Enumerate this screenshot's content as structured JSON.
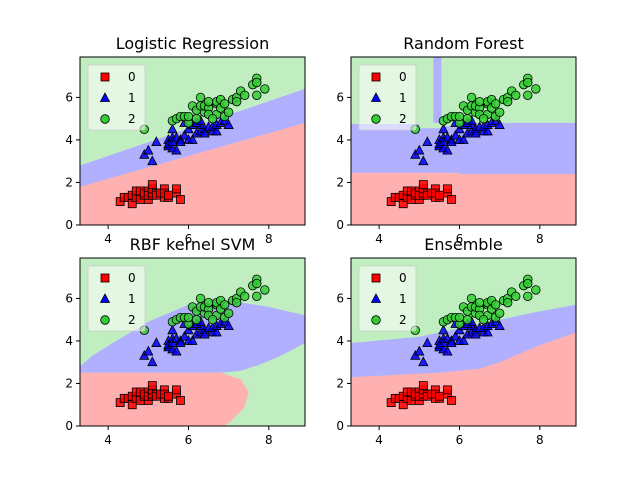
{
  "chart_data": [
    {
      "type": "scatter",
      "title": "Logistic Regression",
      "xlabel": "",
      "ylabel": "",
      "xlim": [
        3.3,
        8.9
      ],
      "ylim": [
        0,
        7.9
      ],
      "xticks": [
        4,
        6,
        8
      ],
      "yticks": [
        0,
        2,
        4,
        6
      ],
      "grid": false,
      "legend": "top-left",
      "regions": {
        "boundary_01": [
          [
            3.3,
            1.8
          ],
          [
            8.9,
            4.8
          ]
        ],
        "boundary_12": [
          [
            3.3,
            2.8
          ],
          [
            8.9,
            6.4
          ]
        ]
      }
    },
    {
      "type": "scatter",
      "title": "Random Forest",
      "xlabel": "",
      "ylabel": "",
      "xlim": [
        3.3,
        8.9
      ],
      "ylim": [
        0,
        7.9
      ],
      "xticks": [
        4,
        6,
        8
      ],
      "yticks": [
        0,
        2,
        4,
        6
      ],
      "grid": false,
      "legend": "top-left",
      "regions": {
        "boundary_01": [
          [
            3.3,
            2.45
          ],
          [
            6.0,
            2.45
          ],
          [
            6.0,
            2.4
          ],
          [
            8.9,
            2.4
          ]
        ],
        "boundary_12": [
          [
            3.3,
            4.75
          ],
          [
            5.0,
            4.75
          ],
          [
            5.0,
            4.55
          ],
          [
            5.6,
            4.55
          ],
          [
            5.6,
            4.65
          ],
          [
            6.0,
            4.65
          ],
          [
            6.0,
            4.8
          ],
          [
            8.9,
            4.8
          ]
        ],
        "green_islands": [
          [
            [
              5.2,
              4.9
            ],
            [
              5.35,
              4.9
            ],
            [
              5.35,
              7.9
            ],
            [
              5.2,
              7.9
            ]
          ]
        ],
        "blue_islands": [
          [
            [
              5.35,
              4.8
            ],
            [
              5.55,
              4.8
            ],
            [
              5.55,
              7.9
            ],
            [
              5.35,
              7.9
            ]
          ]
        ]
      }
    },
    {
      "type": "scatter",
      "title": "RBF kernel SVM",
      "xlabel": "",
      "ylabel": "",
      "xlim": [
        3.3,
        8.9
      ],
      "ylim": [
        0,
        7.9
      ],
      "xticks": [
        4,
        6,
        8
      ],
      "yticks": [
        0,
        2,
        4,
        6
      ],
      "grid": false,
      "legend": "top-left",
      "regions": {
        "boundary_01": [
          [
            3.3,
            2.5
          ],
          [
            6.8,
            2.5
          ],
          [
            7.3,
            2.2
          ],
          [
            7.5,
            1.6
          ],
          [
            7.4,
            0.9
          ],
          [
            7.1,
            0.3
          ],
          [
            6.9,
            0
          ]
        ],
        "boundary_12": [
          [
            3.3,
            2.8
          ],
          [
            3.6,
            3.3
          ],
          [
            4.2,
            4.0
          ],
          [
            5.0,
            4.9
          ],
          [
            6.0,
            5.7
          ],
          [
            7.0,
            5.9
          ],
          [
            8.0,
            5.6
          ],
          [
            8.9,
            5.2
          ]
        ],
        "blue_lower": [
          [
            3.3,
            2.5
          ],
          [
            6.8,
            2.5
          ],
          [
            7.3,
            2.6
          ],
          [
            7.8,
            2.9
          ],
          [
            8.3,
            3.3
          ],
          [
            8.7,
            3.7
          ],
          [
            8.9,
            3.9
          ]
        ]
      }
    },
    {
      "type": "scatter",
      "title": "Ensemble",
      "xlabel": "",
      "ylabel": "",
      "xlim": [
        3.3,
        8.9
      ],
      "ylim": [
        0,
        7.9
      ],
      "xticks": [
        4,
        6,
        8
      ],
      "yticks": [
        0,
        2,
        4,
        6
      ],
      "grid": false,
      "legend": "top-left",
      "regions": {
        "boundary_01": [
          [
            3.3,
            2.3
          ],
          [
            5.5,
            2.5
          ],
          [
            6.5,
            2.7
          ],
          [
            7.0,
            3.0
          ],
          [
            8.0,
            3.8
          ],
          [
            8.9,
            4.4
          ]
        ],
        "boundary_12": [
          [
            3.3,
            3.9
          ],
          [
            5.0,
            4.2
          ],
          [
            6.0,
            4.6
          ],
          [
            7.0,
            5.0
          ],
          [
            8.0,
            5.4
          ],
          [
            8.9,
            5.7
          ]
        ]
      }
    }
  ],
  "classes": [
    {
      "name": "0",
      "marker": "square",
      "fill": "#ff0000",
      "region": "#ffb0b0"
    },
    {
      "name": "1",
      "marker": "triangle",
      "fill": "#0000ff",
      "region": "#b0b0ff"
    },
    {
      "name": "2",
      "marker": "circle",
      "fill": "#33cc33",
      "region": "#c0eec0"
    }
  ],
  "points": {
    "class0": [
      [
        4.3,
        1.1
      ],
      [
        4.4,
        1.3
      ],
      [
        4.5,
        1.3
      ],
      [
        4.6,
        1.4
      ],
      [
        4.6,
        1.0
      ],
      [
        4.7,
        1.3
      ],
      [
        4.7,
        1.6
      ],
      [
        4.8,
        1.4
      ],
      [
        4.8,
        1.6
      ],
      [
        4.8,
        1.2
      ],
      [
        4.9,
        1.4
      ],
      [
        4.9,
        1.5
      ],
      [
        5.0,
        1.6
      ],
      [
        5.0,
        1.2
      ],
      [
        5.0,
        1.4
      ],
      [
        5.1,
        1.4
      ],
      [
        5.1,
        1.5
      ],
      [
        5.1,
        1.7
      ],
      [
        5.1,
        1.9
      ],
      [
        5.2,
        1.5
      ],
      [
        5.2,
        1.4
      ],
      [
        5.3,
        1.5
      ],
      [
        5.4,
        1.7
      ],
      [
        5.4,
        1.3
      ],
      [
        5.4,
        1.5
      ],
      [
        5.5,
        1.3
      ],
      [
        5.5,
        1.4
      ],
      [
        5.7,
        1.5
      ],
      [
        5.7,
        1.7
      ],
      [
        5.8,
        1.2
      ]
    ],
    "class1": [
      [
        4.9,
        3.3
      ],
      [
        5.0,
        3.5
      ],
      [
        5.1,
        3.0
      ],
      [
        5.2,
        3.9
      ],
      [
        5.5,
        4.0
      ],
      [
        5.5,
        3.7
      ],
      [
        5.5,
        3.8
      ],
      [
        5.6,
        3.6
      ],
      [
        5.6,
        4.1
      ],
      [
        5.6,
        3.9
      ],
      [
        5.6,
        4.5
      ],
      [
        5.7,
        4.1
      ],
      [
        5.7,
        3.5
      ],
      [
        5.8,
        4.0
      ],
      [
        5.8,
        3.9
      ],
      [
        5.9,
        4.8
      ],
      [
        5.9,
        4.2
      ],
      [
        6.0,
        4.5
      ],
      [
        6.0,
        4.0
      ],
      [
        6.1,
        4.7
      ],
      [
        6.1,
        4.0
      ],
      [
        6.2,
        4.3
      ],
      [
        6.3,
        4.4
      ],
      [
        6.3,
        4.7
      ],
      [
        6.4,
        4.5
      ],
      [
        6.4,
        4.3
      ],
      [
        6.5,
        4.6
      ],
      [
        6.6,
        4.4
      ],
      [
        6.6,
        4.6
      ],
      [
        6.7,
        4.4
      ],
      [
        6.7,
        4.7
      ],
      [
        6.8,
        4.8
      ],
      [
        6.9,
        4.9
      ],
      [
        7.0,
        4.7
      ],
      [
        6.2,
        4.8
      ],
      [
        6.3,
        4.9
      ]
    ],
    "class2": [
      [
        4.9,
        4.5
      ],
      [
        5.6,
        4.9
      ],
      [
        5.7,
        5.0
      ],
      [
        5.8,
        5.1
      ],
      [
        5.9,
        5.1
      ],
      [
        6.0,
        4.8
      ],
      [
        6.1,
        5.6
      ],
      [
        6.2,
        5.4
      ],
      [
        6.3,
        5.6
      ],
      [
        6.3,
        6.0
      ],
      [
        6.4,
        5.3
      ],
      [
        6.4,
        5.6
      ],
      [
        6.5,
        5.5
      ],
      [
        6.5,
        5.8
      ],
      [
        6.5,
        5.2
      ],
      [
        6.7,
        5.7
      ],
      [
        6.7,
        5.8
      ],
      [
        6.7,
        5.2
      ],
      [
        6.8,
        5.5
      ],
      [
        6.8,
        5.9
      ],
      [
        6.9,
        5.1
      ],
      [
        6.9,
        5.7
      ],
      [
        7.1,
        5.9
      ],
      [
        7.2,
        6.0
      ],
      [
        7.2,
        5.8
      ],
      [
        7.3,
        6.3
      ],
      [
        7.4,
        6.1
      ],
      [
        7.6,
        6.6
      ],
      [
        7.7,
        6.9
      ],
      [
        7.7,
        6.7
      ],
      [
        7.7,
        6.1
      ],
      [
        7.9,
        6.4
      ],
      [
        6.0,
        5.1
      ],
      [
        6.2,
        5.0
      ],
      [
        6.6,
        5.0
      ],
      [
        7.0,
        5.3
      ]
    ]
  }
}
